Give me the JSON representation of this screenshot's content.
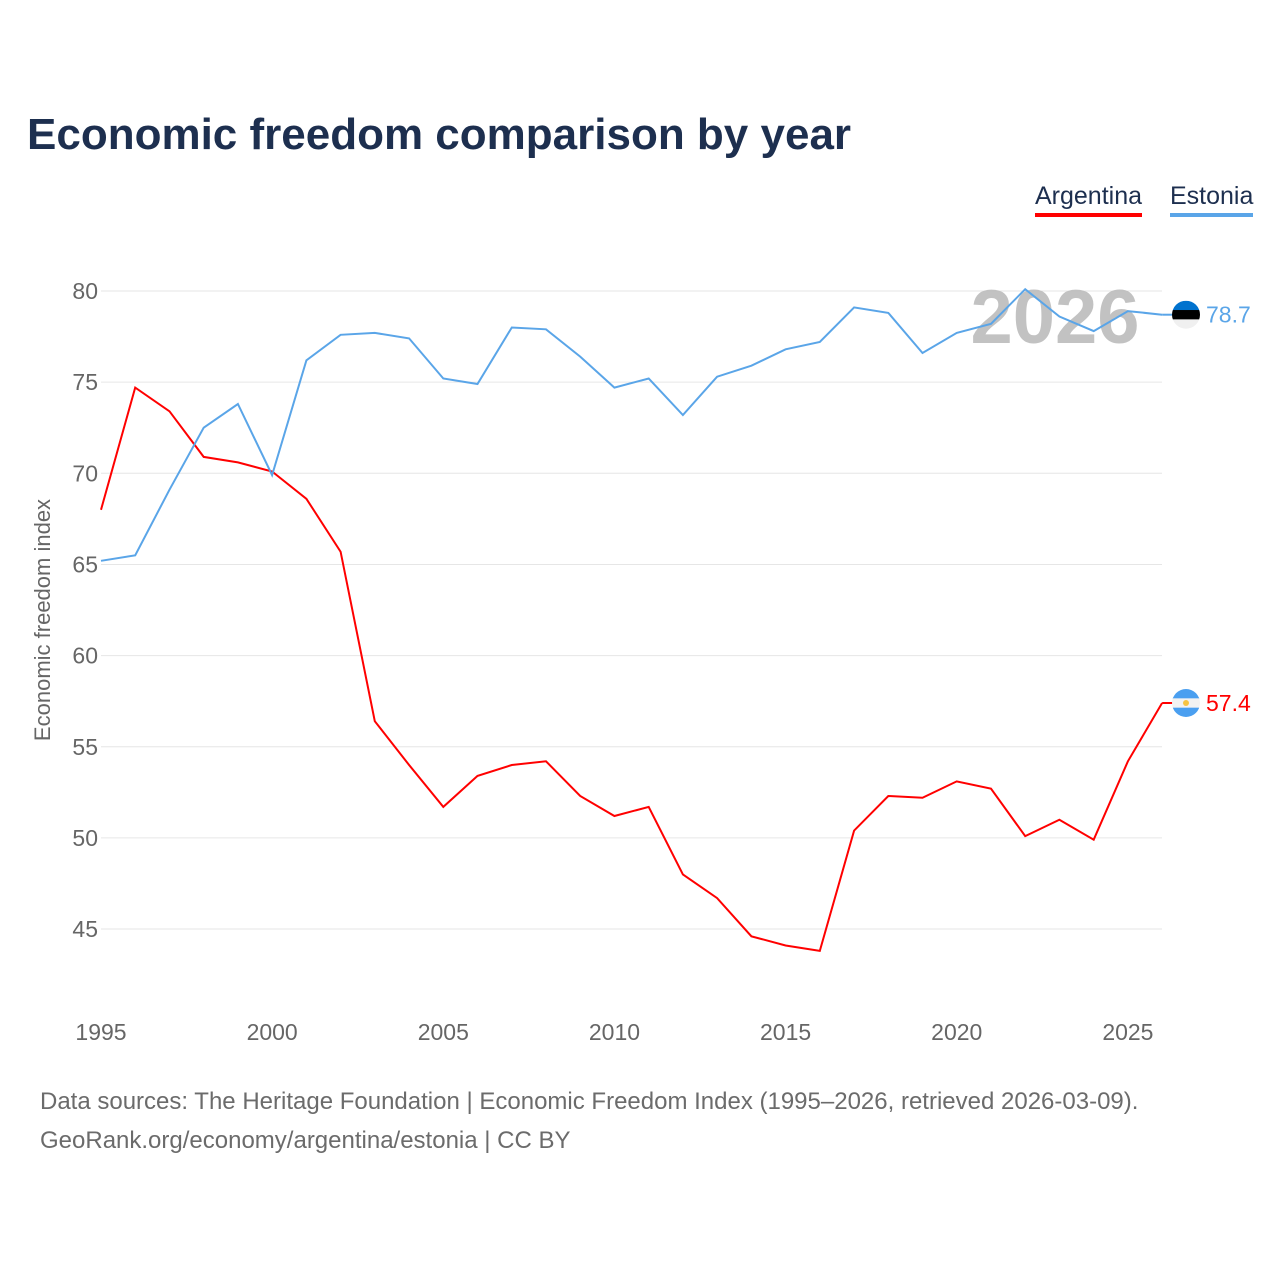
{
  "title": "Economic freedom comparison by year",
  "legend": [
    "Argentina",
    "Estonia"
  ],
  "sources": {
    "line1": "Data sources: The Heritage Foundation | Economic Freedom Index (1995–2026, retrieved 2026-03-09).",
    "line2": "GeoRank.org/economy/argentina/estonia | CC BY"
  },
  "chart_data": {
    "type": "line",
    "title": "Economic freedom comparison by year",
    "xlabel": "",
    "ylabel": "Economic freedom index",
    "year_watermark": "2026",
    "x": [
      1995,
      1996,
      1997,
      1998,
      1999,
      2000,
      2001,
      2002,
      2003,
      2004,
      2005,
      2006,
      2007,
      2008,
      2009,
      2010,
      2011,
      2012,
      2013,
      2014,
      2015,
      2016,
      2017,
      2018,
      2019,
      2020,
      2021,
      2022,
      2023,
      2024,
      2025,
      2026
    ],
    "xticks": [
      1995,
      2000,
      2005,
      2010,
      2015,
      2020,
      2025
    ],
    "yticks": [
      45,
      50,
      55,
      60,
      65,
      70,
      75,
      80
    ],
    "xlim": [
      1995,
      2026
    ],
    "ylim": [
      41,
      82
    ],
    "grid": true,
    "legend_position": "top-right",
    "series": [
      {
        "name": "Argentina",
        "color": "#ff0000",
        "end_label": "57.4",
        "values": [
          68.0,
          74.7,
          73.4,
          70.9,
          70.6,
          70.1,
          68.6,
          65.7,
          56.4,
          54.0,
          51.7,
          53.4,
          54.0,
          54.2,
          52.3,
          51.2,
          51.7,
          48.0,
          46.7,
          44.6,
          44.1,
          43.8,
          50.4,
          52.3,
          52.2,
          53.1,
          52.7,
          50.1,
          51.0,
          49.9,
          54.2,
          57.4
        ]
      },
      {
        "name": "Estonia",
        "color": "#5aa5e8",
        "end_label": "78.7",
        "values": [
          65.2,
          65.5,
          69.1,
          72.5,
          73.8,
          69.9,
          76.2,
          77.6,
          77.7,
          77.4,
          75.2,
          74.9,
          78.0,
          77.9,
          76.4,
          74.7,
          75.2,
          73.2,
          75.3,
          75.9,
          76.8,
          77.2,
          79.1,
          78.8,
          76.6,
          77.7,
          78.2,
          80.1,
          78.6,
          77.8,
          78.9,
          78.7
        ]
      }
    ]
  }
}
